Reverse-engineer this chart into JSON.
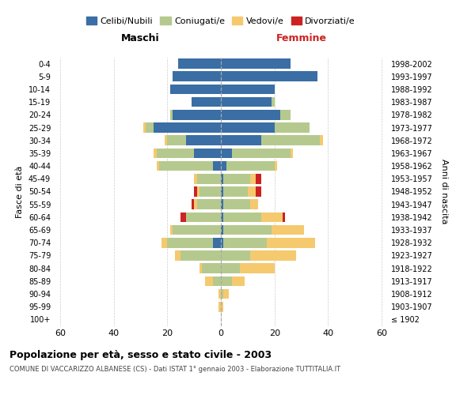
{
  "age_groups": [
    "100+",
    "95-99",
    "90-94",
    "85-89",
    "80-84",
    "75-79",
    "70-74",
    "65-69",
    "60-64",
    "55-59",
    "50-54",
    "45-49",
    "40-44",
    "35-39",
    "30-34",
    "25-29",
    "20-24",
    "15-19",
    "10-14",
    "5-9",
    "0-4"
  ],
  "birth_years": [
    "≤ 1902",
    "1903-1907",
    "1908-1912",
    "1913-1917",
    "1918-1922",
    "1923-1927",
    "1928-1932",
    "1933-1937",
    "1938-1942",
    "1943-1947",
    "1948-1952",
    "1953-1957",
    "1958-1962",
    "1963-1967",
    "1968-1972",
    "1973-1977",
    "1978-1982",
    "1983-1987",
    "1988-1992",
    "1993-1997",
    "1998-2002"
  ],
  "males_celibi": [
    0,
    0,
    0,
    0,
    0,
    0,
    3,
    0,
    0,
    0,
    0,
    0,
    3,
    10,
    13,
    25,
    18,
    11,
    19,
    18,
    16
  ],
  "males_coniugati": [
    0,
    0,
    0,
    3,
    7,
    15,
    17,
    18,
    13,
    9,
    8,
    9,
    20,
    14,
    7,
    3,
    1,
    0,
    0,
    0,
    0
  ],
  "males_vedovi": [
    0,
    1,
    1,
    3,
    1,
    2,
    2,
    1,
    0,
    1,
    1,
    1,
    1,
    1,
    1,
    1,
    0,
    0,
    0,
    0,
    0
  ],
  "males_divorziati": [
    0,
    0,
    0,
    0,
    0,
    0,
    0,
    0,
    2,
    1,
    1,
    0,
    0,
    0,
    0,
    0,
    0,
    0,
    0,
    0,
    0
  ],
  "females_nubili": [
    0,
    0,
    0,
    0,
    0,
    0,
    1,
    1,
    1,
    1,
    1,
    1,
    2,
    4,
    15,
    20,
    22,
    19,
    20,
    36,
    26
  ],
  "females_coniugate": [
    0,
    0,
    1,
    4,
    7,
    11,
    16,
    18,
    14,
    10,
    9,
    10,
    18,
    22,
    22,
    13,
    4,
    1,
    0,
    0,
    0
  ],
  "females_vedove": [
    0,
    1,
    2,
    5,
    13,
    17,
    18,
    12,
    8,
    3,
    3,
    2,
    1,
    1,
    1,
    0,
    0,
    0,
    0,
    0,
    0
  ],
  "females_divorziate": [
    0,
    0,
    0,
    0,
    0,
    0,
    0,
    0,
    1,
    0,
    2,
    2,
    0,
    0,
    0,
    0,
    0,
    0,
    0,
    0,
    0
  ],
  "color_celibi": "#3a6ea5",
  "color_coniugati": "#b5c98e",
  "color_vedovi": "#f5c96e",
  "color_divorziati": "#cc2222",
  "color_grid": "#cccccc",
  "color_vline": "#aaaaaa",
  "xlim": [
    -62,
    62
  ],
  "xticks": [
    -60,
    -40,
    -20,
    0,
    20,
    40,
    60
  ],
  "xticklabels": [
    "60",
    "40",
    "20",
    "0",
    "20",
    "40",
    "60"
  ],
  "title_main": "Popolazione per età, sesso e stato civile - 2003",
  "title_sub": "COMUNE DI VACCARIZZO ALBANESE (CS) - Dati ISTAT 1° gennaio 2003 - Elaborazione TUTTITALIA.IT",
  "ylabel_left": "Fasce di età",
  "ylabel_right": "Anni di nascita",
  "label_maschi": "Maschi",
  "label_femmine": "Femmine",
  "legend_labels": [
    "Celibi/Nubili",
    "Coniugati/e",
    "Vedovi/e",
    "Divorziati/e"
  ]
}
